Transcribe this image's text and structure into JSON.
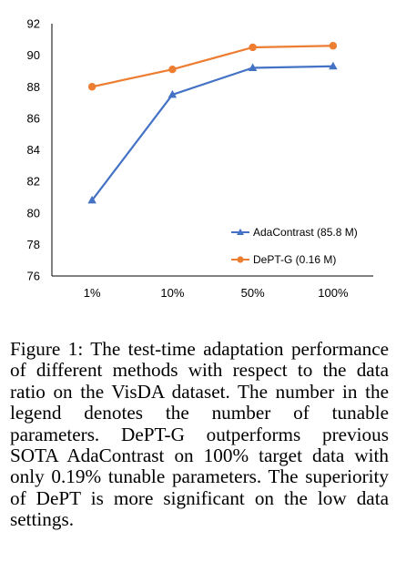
{
  "chart_data": {
    "type": "line",
    "categories": [
      "1%",
      "10%",
      "50%",
      "100%"
    ],
    "yticks": [
      76,
      78,
      80,
      82,
      84,
      86,
      88,
      90,
      92
    ],
    "ylim": [
      76,
      92
    ],
    "grid": false,
    "legend_position": "bottom-right",
    "series": [
      {
        "name": "AdaContrast (85.8 M)",
        "values": [
          80.8,
          87.5,
          89.2,
          89.3
        ],
        "color": "#4472c4",
        "marker": "triangle"
      },
      {
        "name": "DePT-G (0.16 M)",
        "values": [
          88.0,
          89.1,
          90.5,
          90.6
        ],
        "color": "#ed7d31",
        "marker": "circle"
      }
    ]
  },
  "caption": "Figure 1: The test-time adaptation performance of different methods with respect to the data ratio on the VisDA dataset. The number in the legend denotes the number of tunable parameters. DePT-G outperforms previous SOTA AdaContrast on 100% target data with only 0.19% tunable parameters. The superiority of DePT is more significant on the low data settings."
}
